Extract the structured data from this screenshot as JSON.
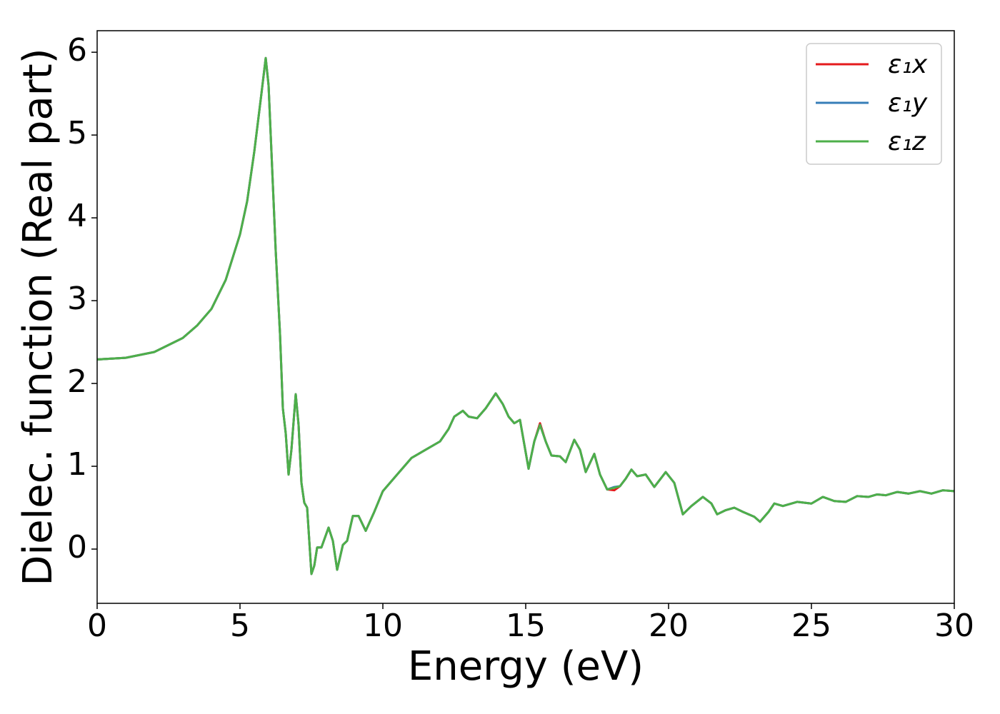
{
  "chart_data": {
    "type": "line",
    "xlabel": "Energy (eV)",
    "ylabel": "Dielec. function (Real part)",
    "xlim": [
      0,
      30
    ],
    "ylim": [
      -0.655,
      6.26
    ],
    "xticks": [
      0,
      5,
      10,
      15,
      20,
      25,
      30
    ],
    "yticks": [
      0,
      1,
      2,
      3,
      4,
      5,
      6
    ],
    "grid": false,
    "legend": "upper right",
    "x": [
      0,
      1,
      2,
      3,
      3.5,
      4,
      4.5,
      5,
      5.25,
      5.5,
      5.75,
      5.9,
      6,
      6.1,
      6.25,
      6.4,
      6.5,
      6.6,
      6.7,
      6.8,
      6.95,
      7.05,
      7.15,
      7.25,
      7.35,
      7.5,
      7.6,
      7.7,
      7.85,
      8.1,
      8.25,
      8.4,
      8.6,
      8.75,
      8.95,
      9.15,
      9.4,
      9.7,
      10,
      10.5,
      11,
      11.5,
      12,
      12.3,
      12.5,
      12.8,
      13,
      13.3,
      13.6,
      13.95,
      14.2,
      14.4,
      14.6,
      14.8,
      15.1,
      15.3,
      15.5,
      15.7,
      15.9,
      16.2,
      16.4,
      16.7,
      16.9,
      17.1,
      17.4,
      17.6,
      17.85,
      18.1,
      18.3,
      18.5,
      18.7,
      18.9,
      19.2,
      19.5,
      19.9,
      20.2,
      20.5,
      20.8,
      21.2,
      21.5,
      21.7,
      22,
      22.3,
      22.6,
      23,
      23.2,
      23.5,
      23.7,
      24,
      24.5,
      25,
      25.4,
      25.8,
      26.2,
      26.6,
      27,
      27.3,
      27.6,
      28,
      28.4,
      28.8,
      29.2,
      29.6,
      30
    ],
    "series": [
      {
        "name": "ε₁x",
        "color": "#e41a1c",
        "values": [
          2.29,
          2.31,
          2.38,
          2.55,
          2.7,
          2.9,
          3.25,
          3.8,
          4.2,
          4.8,
          5.5,
          5.93,
          5.6,
          4.8,
          3.6,
          2.6,
          1.7,
          1.4,
          0.9,
          1.2,
          1.87,
          1.5,
          0.8,
          0.56,
          0.5,
          -0.3,
          -0.2,
          0.02,
          0.02,
          0.26,
          0.1,
          -0.25,
          0.05,
          0.1,
          0.4,
          0.4,
          0.22,
          0.45,
          0.7,
          0.9,
          1.1,
          1.2,
          1.3,
          1.45,
          1.6,
          1.67,
          1.6,
          1.58,
          1.7,
          1.88,
          1.75,
          1.6,
          1.52,
          1.56,
          0.97,
          1.3,
          1.52,
          1.3,
          1.13,
          1.12,
          1.05,
          1.32,
          1.2,
          0.93,
          1.15,
          0.9,
          0.72,
          0.71,
          0.76,
          0.85,
          0.96,
          0.88,
          0.9,
          0.75,
          0.93,
          0.8,
          0.42,
          0.52,
          0.63,
          0.55,
          0.42,
          0.47,
          0.5,
          0.45,
          0.39,
          0.33,
          0.45,
          0.55,
          0.52,
          0.57,
          0.55,
          0.63,
          0.58,
          0.57,
          0.64,
          0.63,
          0.66,
          0.65,
          0.69,
          0.67,
          0.7,
          0.67,
          0.71,
          0.7
        ]
      },
      {
        "name": "ε₁y",
        "color": "#377eb8",
        "values": [
          2.29,
          2.31,
          2.38,
          2.55,
          2.7,
          2.9,
          3.25,
          3.8,
          4.2,
          4.8,
          5.5,
          5.93,
          5.6,
          4.8,
          3.6,
          2.6,
          1.7,
          1.4,
          0.9,
          1.2,
          1.87,
          1.5,
          0.8,
          0.56,
          0.5,
          -0.3,
          -0.2,
          0.02,
          0.02,
          0.26,
          0.1,
          -0.25,
          0.05,
          0.1,
          0.4,
          0.4,
          0.22,
          0.45,
          0.7,
          0.9,
          1.1,
          1.2,
          1.3,
          1.45,
          1.6,
          1.67,
          1.6,
          1.58,
          1.7,
          1.88,
          1.75,
          1.6,
          1.52,
          1.56,
          0.97,
          1.3,
          1.5,
          1.3,
          1.13,
          1.12,
          1.05,
          1.32,
          1.2,
          0.93,
          1.15,
          0.9,
          0.72,
          0.75,
          0.76,
          0.85,
          0.96,
          0.88,
          0.9,
          0.75,
          0.93,
          0.8,
          0.42,
          0.52,
          0.63,
          0.55,
          0.42,
          0.47,
          0.5,
          0.45,
          0.39,
          0.33,
          0.45,
          0.55,
          0.52,
          0.57,
          0.55,
          0.63,
          0.58,
          0.57,
          0.64,
          0.63,
          0.66,
          0.65,
          0.69,
          0.67,
          0.7,
          0.67,
          0.71,
          0.7
        ]
      },
      {
        "name": "ε₁z",
        "color": "#4daf4a",
        "values": [
          2.29,
          2.31,
          2.38,
          2.55,
          2.7,
          2.9,
          3.25,
          3.8,
          4.2,
          4.8,
          5.5,
          5.93,
          5.6,
          4.8,
          3.6,
          2.6,
          1.7,
          1.4,
          0.9,
          1.2,
          1.87,
          1.5,
          0.8,
          0.56,
          0.5,
          -0.3,
          -0.2,
          0.02,
          0.02,
          0.26,
          0.1,
          -0.25,
          0.05,
          0.1,
          0.4,
          0.4,
          0.22,
          0.45,
          0.7,
          0.9,
          1.1,
          1.2,
          1.3,
          1.45,
          1.6,
          1.67,
          1.6,
          1.58,
          1.7,
          1.88,
          1.75,
          1.6,
          1.52,
          1.56,
          0.97,
          1.3,
          1.5,
          1.3,
          1.13,
          1.12,
          1.05,
          1.32,
          1.2,
          0.93,
          1.15,
          0.9,
          0.72,
          0.74,
          0.76,
          0.85,
          0.96,
          0.88,
          0.9,
          0.75,
          0.93,
          0.8,
          0.42,
          0.52,
          0.63,
          0.55,
          0.42,
          0.47,
          0.5,
          0.45,
          0.39,
          0.33,
          0.45,
          0.55,
          0.52,
          0.57,
          0.55,
          0.63,
          0.58,
          0.57,
          0.64,
          0.63,
          0.66,
          0.65,
          0.69,
          0.67,
          0.7,
          0.67,
          0.71,
          0.7
        ]
      }
    ]
  }
}
